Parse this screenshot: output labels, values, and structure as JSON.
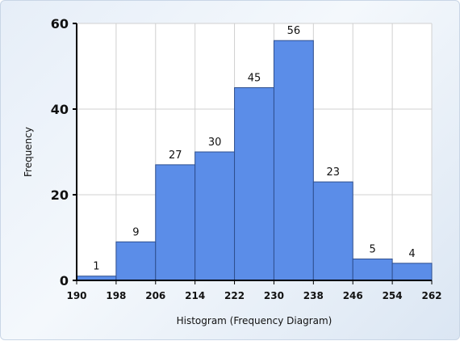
{
  "chart_data": {
    "type": "bar",
    "title": "",
    "xlabel": "Histogram (Frequency Diagram)",
    "ylabel": "Frequency",
    "bin_edges": [
      190,
      198,
      206,
      214,
      222,
      230,
      238,
      246,
      254,
      262
    ],
    "values": [
      1,
      9,
      27,
      30,
      45,
      56,
      23,
      5,
      4
    ],
    "ylim": [
      0,
      60
    ],
    "yticks": [
      0,
      20,
      40,
      60
    ],
    "xlim": [
      190,
      262
    ],
    "grid": true,
    "bar_color": "#5b8de8",
    "bar_border": "#2e4f8f"
  }
}
